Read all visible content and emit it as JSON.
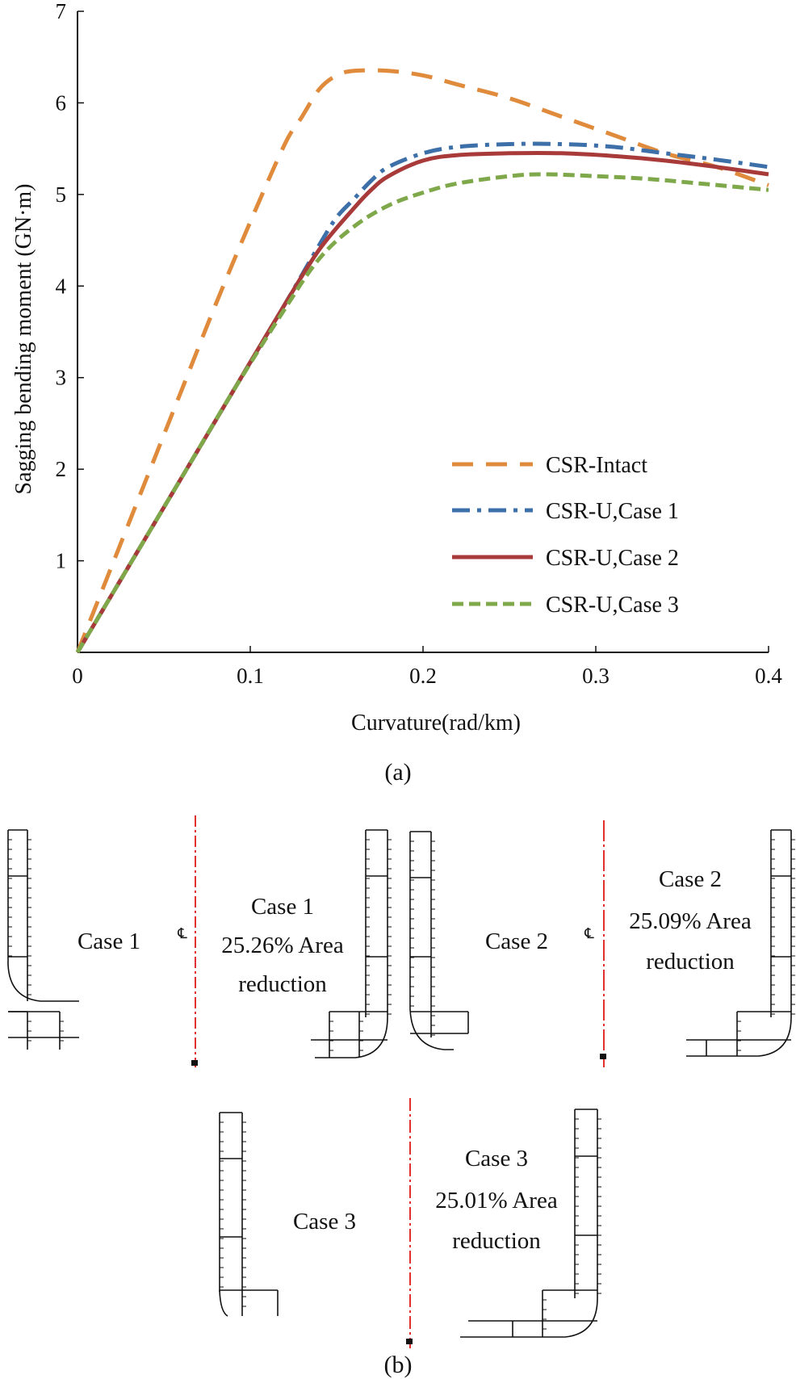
{
  "chart_data": {
    "type": "line",
    "title": "",
    "xlabel": "Curvature(rad/km)",
    "ylabel": "Sagging bending moment (GN·m)",
    "xlim": [
      0,
      0.4
    ],
    "ylim": [
      0,
      7
    ],
    "xticks": [
      "0",
      "0.1",
      "0.2",
      "0.3",
      "0.4"
    ],
    "yticks": [
      "1",
      "2",
      "3",
      "4",
      "5",
      "6",
      "7"
    ],
    "legend_position": "bottom-right",
    "series": [
      {
        "name": "CSR-Intact",
        "color": "#e08a3c",
        "style": "dashed",
        "x": [
          0,
          0.02,
          0.04,
          0.06,
          0.08,
          0.1,
          0.12,
          0.13,
          0.14,
          0.15,
          0.16,
          0.18,
          0.2,
          0.22,
          0.25,
          0.28,
          0.31,
          0.34,
          0.37,
          0.4
        ],
        "y": [
          0,
          0.95,
          1.9,
          2.85,
          3.8,
          4.7,
          5.55,
          5.85,
          6.15,
          6.3,
          6.35,
          6.35,
          6.3,
          6.2,
          6.05,
          5.85,
          5.65,
          5.45,
          5.3,
          5.1
        ]
      },
      {
        "name": "CSR-U,Case 1",
        "color": "#3d6fa8",
        "style": "dash-dot",
        "x": [
          0,
          0.03,
          0.06,
          0.09,
          0.12,
          0.14,
          0.15,
          0.16,
          0.17,
          0.18,
          0.2,
          0.22,
          0.25,
          0.28,
          0.31,
          0.34,
          0.37,
          0.4
        ],
        "y": [
          0,
          0.95,
          1.9,
          2.85,
          3.8,
          4.45,
          4.75,
          4.95,
          5.15,
          5.3,
          5.45,
          5.52,
          5.55,
          5.55,
          5.52,
          5.45,
          5.38,
          5.3
        ]
      },
      {
        "name": "CSR-U,Case 2",
        "color": "#a83a3a",
        "style": "solid",
        "x": [
          0,
          0.03,
          0.06,
          0.09,
          0.12,
          0.14,
          0.16,
          0.17,
          0.18,
          0.2,
          0.22,
          0.25,
          0.28,
          0.31,
          0.34,
          0.37,
          0.4
        ],
        "y": [
          0,
          0.95,
          1.9,
          2.85,
          3.8,
          4.4,
          4.85,
          5.05,
          5.2,
          5.37,
          5.43,
          5.45,
          5.45,
          5.42,
          5.37,
          5.3,
          5.22
        ]
      },
      {
        "name": "CSR-U,Case 3",
        "color": "#7ea84a",
        "style": "short-dashed",
        "x": [
          0,
          0.03,
          0.06,
          0.09,
          0.12,
          0.14,
          0.16,
          0.18,
          0.2,
          0.22,
          0.25,
          0.27,
          0.3,
          0.33,
          0.36,
          0.4
        ],
        "y": [
          0,
          0.95,
          1.9,
          2.85,
          3.75,
          4.3,
          4.65,
          4.88,
          5.02,
          5.12,
          5.2,
          5.22,
          5.2,
          5.17,
          5.12,
          5.05
        ]
      }
    ]
  },
  "panel_a_label": "(a)",
  "panel_b_label": "(b)",
  "panel_b": {
    "centerline_symbol": "℄",
    "case1": {
      "left_label": "Case 1",
      "right_title": "Case 1",
      "right_line2": "25.26% Area",
      "right_line3": "reduction"
    },
    "case2": {
      "left_label": "Case 2",
      "right_title": "Case 2",
      "right_line2": "25.09% Area",
      "right_line3": "reduction"
    },
    "case3": {
      "left_label": "Case 3",
      "right_title": "Case 3",
      "right_line2": "25.01% Area",
      "right_line3": "reduction"
    },
    "centerline_color": "#e03030"
  }
}
